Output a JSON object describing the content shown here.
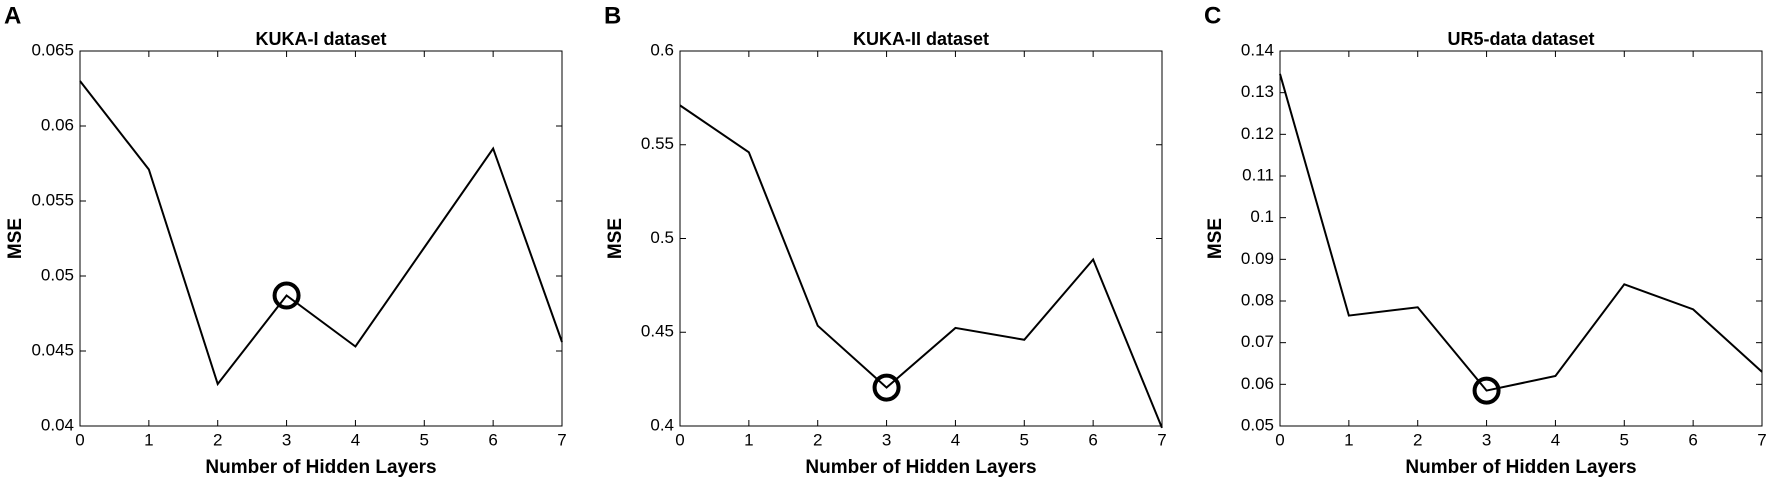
{
  "chart_data": [
    {
      "type": "line",
      "panel_label": "A",
      "title": "KUKA-I dataset",
      "x_label": "Number of Hidden Layers",
      "y_label": "MSE",
      "x": [
        0,
        1,
        2,
        3,
        4,
        5,
        6,
        7
      ],
      "series": [
        {
          "color": "#000000",
          "values": [
            0.063,
            0.0571,
            0.0428,
            0.0487,
            0.0453,
            0.0519,
            0.0585,
            0.0456
          ]
        }
      ],
      "highlight_x": 3,
      "xlim": [
        0,
        7
      ],
      "xticks": [
        0,
        1,
        2,
        3,
        4,
        5,
        6,
        7
      ],
      "ylim": [
        0.04,
        0.065
      ],
      "yticks": [
        0.04,
        0.045,
        0.05,
        0.055,
        0.06,
        0.065
      ]
    },
    {
      "type": "line",
      "panel_label": "B",
      "title": "KUKA-II dataset",
      "x_label": "Number of Hidden Layers",
      "y_label": "MSE",
      "x": [
        0,
        1,
        2,
        3,
        4,
        5,
        6,
        7
      ],
      "series": [
        {
          "color": "#000000",
          "values": [
            0.571,
            0.546,
            0.4535,
            0.4205,
            0.4523,
            0.446,
            0.4888,
            0.399
          ]
        }
      ],
      "highlight_x": 3,
      "xlim": [
        0,
        7
      ],
      "xticks": [
        0,
        1,
        2,
        3,
        4,
        5,
        6,
        7
      ],
      "ylim": [
        0.4,
        0.6
      ],
      "yticks": [
        0.4,
        0.45,
        0.5,
        0.55,
        0.6
      ]
    },
    {
      "type": "line",
      "panel_label": "C",
      "title": "UR5-data dataset",
      "x_label": "Number of Hidden Layers",
      "y_label": "MSE",
      "x": [
        0,
        1,
        2,
        3,
        4,
        5,
        6,
        7
      ],
      "series": [
        {
          "color": "#000000",
          "values": [
            0.1345,
            0.0765,
            0.0785,
            0.0585,
            0.062,
            0.084,
            0.078,
            0.063
          ]
        }
      ],
      "highlight_x": 3,
      "xlim": [
        0,
        7
      ],
      "xticks": [
        0,
        1,
        2,
        3,
        4,
        5,
        6,
        7
      ],
      "ylim": [
        0.05,
        0.14
      ],
      "yticks": [
        0.05,
        0.06,
        0.07,
        0.08,
        0.09,
        0.1,
        0.11,
        0.12,
        0.13,
        0.14
      ]
    }
  ]
}
